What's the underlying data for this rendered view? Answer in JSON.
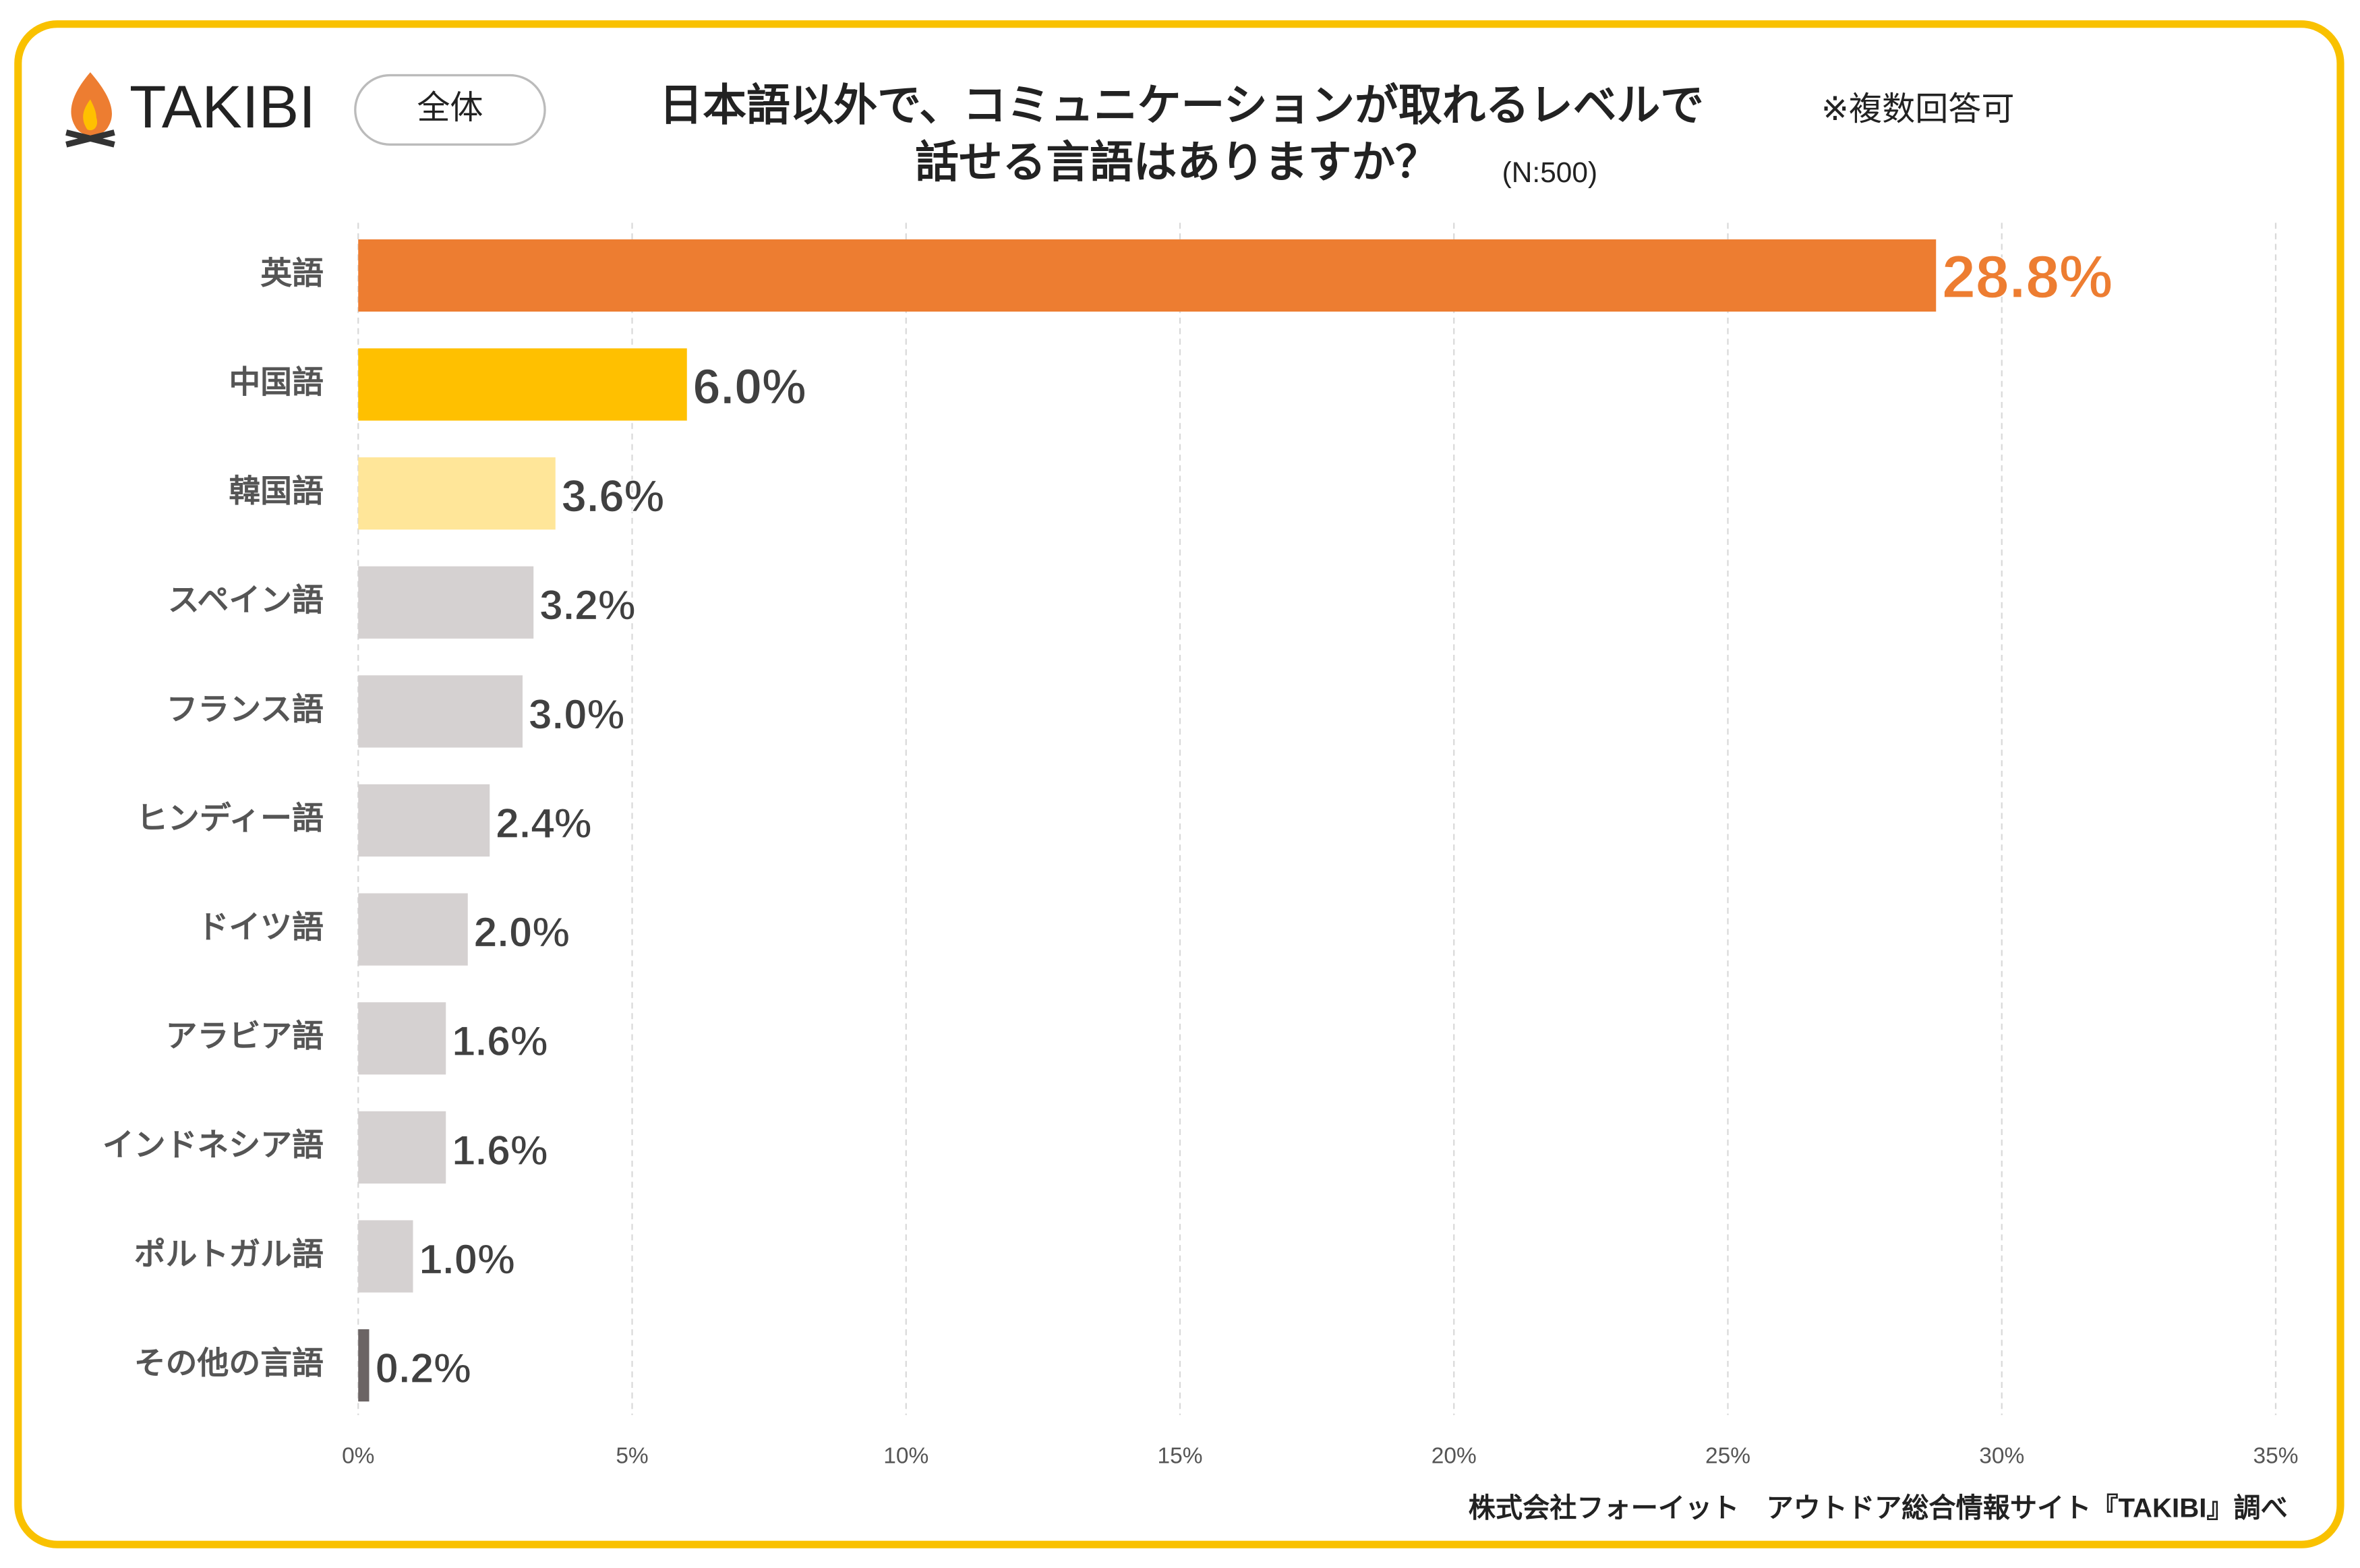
{
  "chart_data": {
    "type": "barh",
    "brand": "TAKIBI",
    "badge": "全体",
    "title": [
      "日本語以外で、コミュニケーションが取れるレベルで",
      "話せる言語はありますか？"
    ],
    "note": "※複数回答可",
    "sample_size": "(N:500)",
    "source": "株式会社フォーイット　アウトドア総合情報サイト『TAKIBI』調べ",
    "categories": [
      "英語",
      "中国語",
      "韓国語",
      "スペイン語",
      "フランス語",
      "ヒンディー語",
      "ドイツ語",
      "アラビア語",
      "インドネシア語",
      "ポルトガル語",
      "その他の言語"
    ],
    "values": [
      28.8,
      6.0,
      3.6,
      3.2,
      3.0,
      2.4,
      2.0,
      1.6,
      1.6,
      1.0,
      0.2
    ],
    "value_labels": [
      "28.8%",
      "6.0%",
      "3.6%",
      "3.2%",
      "3.0%",
      "2.4%",
      "2.0%",
      "1.6%",
      "1.6%",
      "1.0%",
      "0.2%"
    ],
    "colors": [
      "#ED7D31",
      "#FFC000",
      "#FFE699",
      "#D5D1D1",
      "#D5D1D1",
      "#D5D1D1",
      "#D5D1D1",
      "#D5D1D1",
      "#D5D1D1",
      "#D5D1D1",
      "#6B6464"
    ],
    "xlim": [
      0,
      35
    ],
    "xticks": [
      {
        "value": 0,
        "label": "0%"
      },
      {
        "value": 5,
        "label": "5%"
      },
      {
        "value": 10,
        "label": "10%"
      },
      {
        "value": 15,
        "label": "15%"
      },
      {
        "value": 20,
        "label": "20%"
      },
      {
        "value": 25,
        "label": "25%"
      },
      {
        "value": 30,
        "label": "30%"
      },
      {
        "value": 35,
        "label": "35%"
      }
    ],
    "grid": true
  }
}
